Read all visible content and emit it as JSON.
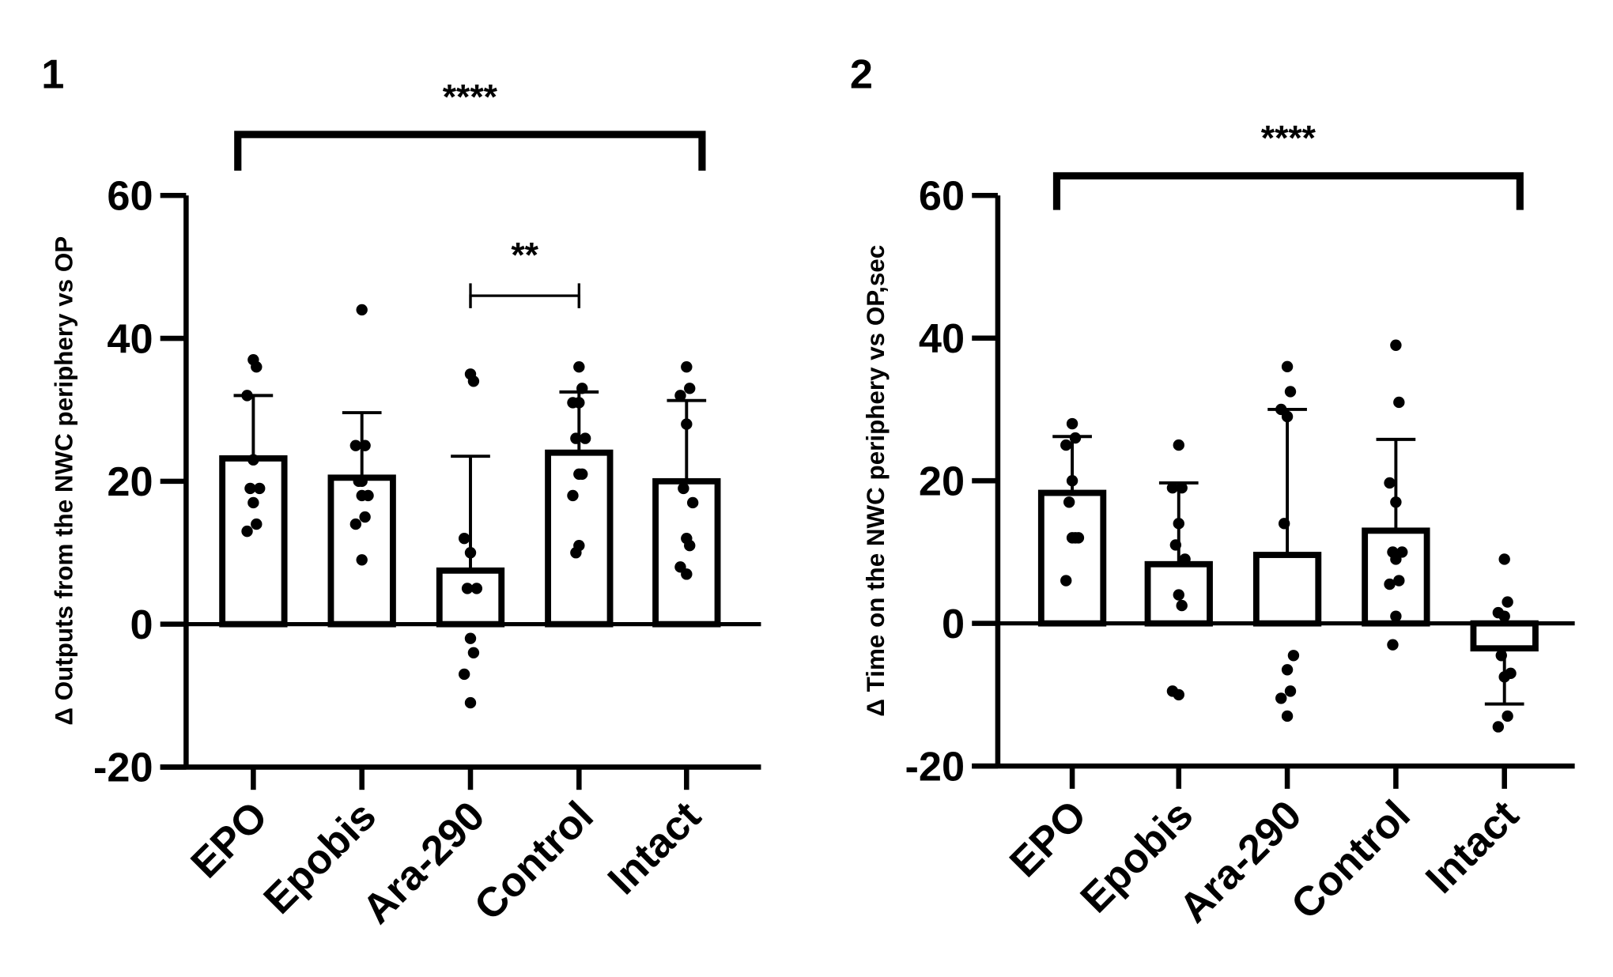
{
  "chart_data": [
    {
      "type": "bar",
      "panel_label": "1",
      "ylabel": "Δ Outputs from the NWC periphery vs OP",
      "categories": [
        "EPO",
        "Epobis",
        "Ara-290",
        "Control",
        "Intact"
      ],
      "ylim": [
        -20,
        60
      ],
      "yticks": [
        "60",
        "40",
        "20",
        "0",
        "-20"
      ],
      "ytick_values": [
        60,
        40,
        20,
        0,
        -20
      ],
      "means": [
        23.2,
        20.5,
        7.5,
        24.0,
        20.0
      ],
      "sd_ends": [
        32.0,
        29.6,
        23.5,
        32.5,
        31.3
      ],
      "points": [
        [
          37,
          36,
          32,
          23,
          19,
          19,
          17,
          14,
          13
        ],
        [
          44,
          25,
          25,
          20,
          20,
          18,
          18,
          15,
          14,
          9
        ],
        [
          35,
          34,
          12,
          10,
          5,
          5,
          -2,
          -4,
          -7,
          -11
        ],
        [
          36,
          33,
          31,
          31,
          26,
          26,
          21,
          21,
          18,
          11,
          10
        ],
        [
          36,
          33,
          32,
          28,
          19,
          17,
          12,
          11,
          8,
          7
        ]
      ],
      "significance": [
        {
          "from": "EPO",
          "to": "Intact",
          "label": "****"
        },
        {
          "from": "Ara-290",
          "to": "Control",
          "label": "**"
        }
      ],
      "grid": false,
      "bar_fill": "#ffffff",
      "stroke_color": "#000000"
    },
    {
      "type": "bar",
      "panel_label": "2",
      "ylabel": "Δ Time on the NWC periphery vs OP,sec",
      "categories": [
        "EPO",
        "Epobis",
        "Ara-290",
        "Control",
        "Intact"
      ],
      "ylim": [
        -20,
        60
      ],
      "yticks": [
        "60",
        "40",
        "20",
        "0",
        "-20"
      ],
      "ytick_values": [
        60,
        40,
        20,
        0,
        -20
      ],
      "means": [
        18.3,
        8.3,
        9.6,
        13.0,
        -3.5
      ],
      "sd_ends": [
        26.2,
        19.7,
        30.0,
        25.8,
        -11.3
      ],
      "points": [
        [
          28,
          26,
          25,
          20,
          17,
          12,
          12,
          12,
          6
        ],
        [
          25,
          19,
          19,
          14,
          11,
          9,
          4,
          2.5,
          -9.5,
          -10
        ],
        [
          36,
          32.5,
          30,
          29,
          14,
          -4.5,
          -6.5,
          -9.5,
          -10.5,
          -13
        ],
        [
          39,
          31,
          19.7,
          17,
          10,
          10,
          9,
          6,
          5.5,
          1,
          -3
        ],
        [
          9,
          3,
          1.5,
          1,
          -4.5,
          -7,
          -7.5,
          -13,
          -14.5
        ]
      ],
      "significance": [
        {
          "from": "EPO",
          "to": "Intact",
          "label": "****"
        }
      ],
      "grid": false,
      "bar_fill": "#ffffff",
      "stroke_color": "#000000"
    }
  ]
}
